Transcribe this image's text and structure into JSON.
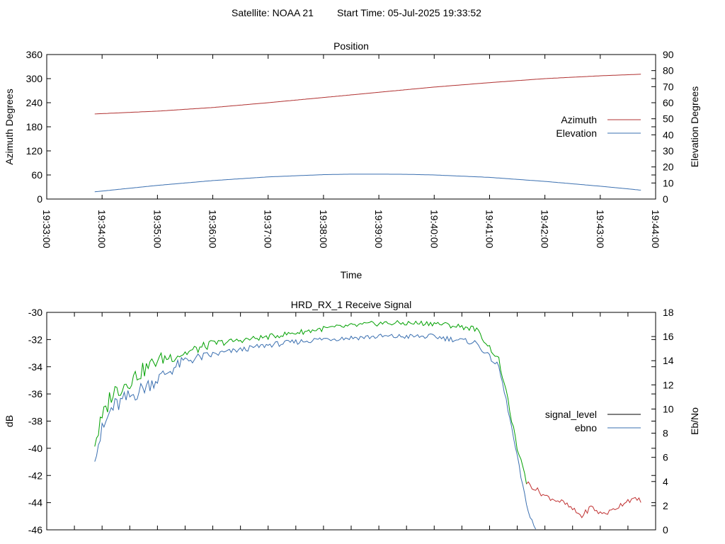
{
  "header": {
    "satellite_label": "Satellite: NOAA 21",
    "start_time_label": "Start Time: 05-Jul-2025 19:33:52"
  },
  "chart_data": [
    {
      "type": "line",
      "title": "Position",
      "xlabel": "Time",
      "ylabel": "Azimuth Degrees",
      "y2label": "Elevation Degrees",
      "x_ticks": [
        "19:33:00",
        "19:34:00",
        "19:35:00",
        "19:36:00",
        "19:37:00",
        "19:38:00",
        "19:39:00",
        "19:40:00",
        "19:41:00",
        "19:42:00",
        "19:43:00",
        "19:44:00"
      ],
      "xlim_seconds_after_19_33_00": [
        0,
        660
      ],
      "ylim": [
        0,
        360
      ],
      "y_ticks": [
        0,
        60,
        120,
        180,
        240,
        300,
        360
      ],
      "y2lim": [
        0,
        90
      ],
      "y2_ticks": [
        0,
        10,
        20,
        30,
        40,
        50,
        60,
        70,
        80,
        90
      ],
      "grid": false,
      "legend_placement": "right",
      "series": [
        {
          "name": "Azimuth",
          "axis": "y",
          "color": "#b03030",
          "x": [
            "19:33:52",
            "19:35:00",
            "19:36:00",
            "19:37:00",
            "19:38:00",
            "19:39:00",
            "19:40:00",
            "19:41:00",
            "19:42:00",
            "19:43:00",
            "19:43:45"
          ],
          "values": [
            212,
            219,
            228,
            240,
            253,
            266,
            279,
            290,
            300,
            307,
            311
          ]
        },
        {
          "name": "Elevation",
          "axis": "y2",
          "color": "#3a6fb0",
          "x": [
            "19:33:52",
            "19:35:00",
            "19:36:00",
            "19:37:00",
            "19:38:00",
            "19:38:30",
            "19:39:00",
            "19:39:30",
            "19:40:00",
            "19:41:00",
            "19:42:00",
            "19:43:00",
            "19:43:45"
          ],
          "values": [
            4.5,
            8.5,
            11.5,
            13.8,
            15.2,
            15.5,
            15.5,
            15.4,
            15.0,
            13.5,
            11.0,
            8.0,
            5.5
          ]
        }
      ]
    },
    {
      "type": "line",
      "title": "HRD_RX_1 Receive Signal",
      "ylabel": "dB",
      "y2label": "Eb/No",
      "xlim_seconds_after_19_33_00": [
        0,
        660
      ],
      "ylim": [
        -46,
        -30
      ],
      "y_ticks": [
        -46,
        -44,
        -42,
        -40,
        -38,
        -36,
        -34,
        -32,
        -30
      ],
      "y2lim": [
        0,
        18
      ],
      "y2_ticks": [
        0,
        2,
        4,
        6,
        8,
        10,
        12,
        14,
        16,
        18
      ],
      "grid": false,
      "legend_placement": "right",
      "series": [
        {
          "name": "signal_level",
          "axis": "y",
          "color": "#000000",
          "x": [],
          "values": []
        },
        {
          "name": "ebno",
          "axis": "y2",
          "color": "#3a6fb0",
          "x": [
            "19:33:52",
            "19:34:10",
            "19:34:30",
            "19:35:00",
            "19:35:30",
            "19:36:00",
            "19:37:00",
            "19:38:00",
            "19:39:00",
            "19:40:00",
            "19:40:45",
            "19:41:10",
            "19:41:20",
            "19:41:30",
            "19:41:40",
            "19:41:50"
          ],
          "values": [
            6.5,
            10,
            11,
            12.5,
            14,
            14.5,
            15.3,
            15.8,
            16,
            16,
            15.5,
            13.5,
            10,
            6,
            2,
            0
          ]
        },
        {
          "color": "#00a000",
          "axis": "y",
          "x": [
            "19:33:52",
            "19:34:10",
            "19:34:30",
            "19:35:00",
            "19:35:30",
            "19:36:00",
            "19:37:00",
            "19:38:00",
            "19:39:00",
            "19:40:00",
            "19:40:45",
            "19:41:10",
            "19:41:20",
            "19:41:30",
            "19:41:40"
          ],
          "values": [
            -39.5,
            -36,
            -35,
            -33.5,
            -33,
            -32.3,
            -31.8,
            -31.2,
            -30.8,
            -30.8,
            -31.2,
            -33.5,
            -36.5,
            -40,
            -42.5
          ]
        },
        {
          "color": "#c03030",
          "axis": "y",
          "x": [
            "19:41:40",
            "19:42:00",
            "19:42:20",
            "19:42:30",
            "19:42:40",
            "19:42:50",
            "19:43:00",
            "19:43:10",
            "19:43:30",
            "19:43:45"
          ],
          "values": [
            -42.5,
            -43.5,
            -44,
            -44.5,
            -45,
            -44.3,
            -44.8,
            -44.7,
            -43.8,
            -43.8
          ]
        }
      ]
    }
  ]
}
